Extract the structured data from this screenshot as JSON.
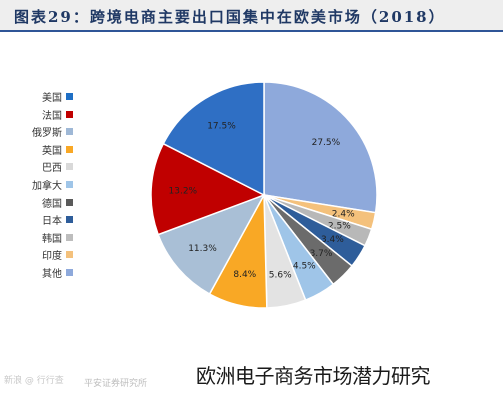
{
  "header": {
    "title": "图表29：跨境电商主要出口国集中在欧美市场（2018）"
  },
  "chart_data": {
    "type": "pie",
    "title": "图表29：跨境电商主要出口国集中在欧美市场（2018）",
    "legend_position": "left",
    "unit": "%",
    "slices": [
      {
        "label": "美国",
        "value": 27.5,
        "display": "27.5%",
        "color": "#8ea9db"
      },
      {
        "label": "法国",
        "value": 2.4,
        "display": "2.4%",
        "color": "#f4c17c"
      },
      {
        "label": "俄罗斯",
        "value": 2.5,
        "display": "2.5%",
        "color": "#b8b8b8"
      },
      {
        "label": "英国",
        "value": 3.4,
        "display": "3.4%",
        "color": "#2e5d9a"
      },
      {
        "label": "巴西",
        "value": 3.7,
        "display": "3.7%",
        "color": "#6b6b6b"
      },
      {
        "label": "加拿大",
        "value": 4.5,
        "display": "4.5%",
        "color": "#9fc5e8"
      },
      {
        "label": "德国",
        "value": 5.6,
        "display": "5.6%",
        "color": "#e3e3e3"
      },
      {
        "label": "日本",
        "value": 8.4,
        "display": "8.4%",
        "color": "#f9a825"
      },
      {
        "label": "韩国",
        "value": 11.3,
        "display": "11.3%",
        "color": "#a9bfd6"
      },
      {
        "label": "印度",
        "value": 13.2,
        "display": "13.2%",
        "color": "#c00000"
      },
      {
        "label": "其他",
        "value": 17.5,
        "display": "17.5%",
        "color": "#2f6fc4"
      }
    ],
    "legend": [
      {
        "label": "美国",
        "color": "#1f6fc5"
      },
      {
        "label": "法国",
        "color": "#c00000"
      },
      {
        "label": "俄罗斯",
        "color": "#9fb8d6"
      },
      {
        "label": "英国",
        "color": "#f9a825"
      },
      {
        "label": "巴西",
        "color": "#d9d9d9"
      },
      {
        "label": "加拿大",
        "color": "#9fc5e8"
      },
      {
        "label": "德国",
        "color": "#5a5a5a"
      },
      {
        "label": "日本",
        "color": "#2e5d9a"
      },
      {
        "label": "韩国",
        "color": "#bdbdbd"
      },
      {
        "label": "印度",
        "color": "#f4c17c"
      },
      {
        "label": "其他",
        "color": "#8ea9db"
      }
    ]
  },
  "watermarks": {
    "logo": "新浪 @ 行行查",
    "source": "平安证券研究所"
  },
  "caption": "欧洲电子商务市场潜力研究"
}
